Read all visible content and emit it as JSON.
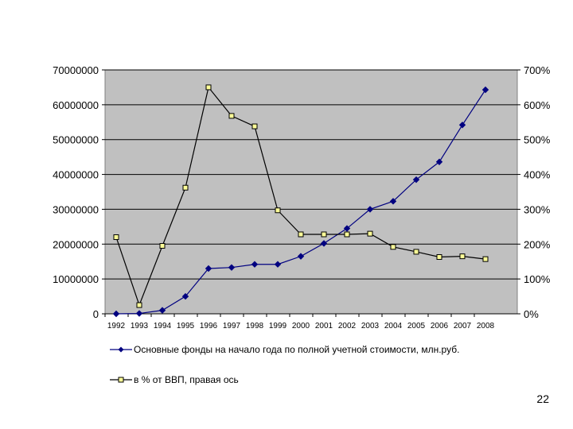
{
  "slide": {
    "page_number": "22"
  },
  "chart_data": {
    "type": "line",
    "categories": [
      "1992",
      "1993",
      "1994",
      "1995",
      "1996",
      "1997",
      "1998",
      "1999",
      "2000",
      "2001",
      "2002",
      "2003",
      "2004",
      "2005",
      "2006",
      "2007",
      "2008"
    ],
    "left_axis": {
      "ylim": [
        0,
        70000000
      ],
      "ticks": [
        "0",
        "10000000",
        "20000000",
        "30000000",
        "40000000",
        "50000000",
        "60000000",
        "70000000"
      ]
    },
    "right_axis": {
      "ylim": [
        0,
        700
      ],
      "ticks": [
        "0%",
        "100%",
        "200%",
        "300%",
        "400%",
        "500%",
        "600%",
        "700%"
      ]
    },
    "series": [
      {
        "name": "Основные фонды на начало года по полной учетной стоимости, млн.руб.",
        "axis": "left",
        "color": "#000080",
        "marker": "diamond",
        "values": [
          0,
          100000,
          1000000,
          5000000,
          13000000,
          13300000,
          14200000,
          14200000,
          16500000,
          20200000,
          24500000,
          30000000,
          32300000,
          38500000,
          43600000,
          54200000,
          64300000
        ]
      },
      {
        "name": "в % от ВВП, правая ось",
        "axis": "right",
        "color": "#000000",
        "marker_fill": "#ffff99",
        "marker": "square",
        "values": [
          220,
          25,
          195,
          362,
          650,
          568,
          538,
          297,
          228,
          228,
          228,
          230,
          192,
          178,
          163,
          165,
          157
        ]
      }
    ],
    "plot_background": "#c0c0c0",
    "grid": true,
    "legend_position": "bottom"
  }
}
